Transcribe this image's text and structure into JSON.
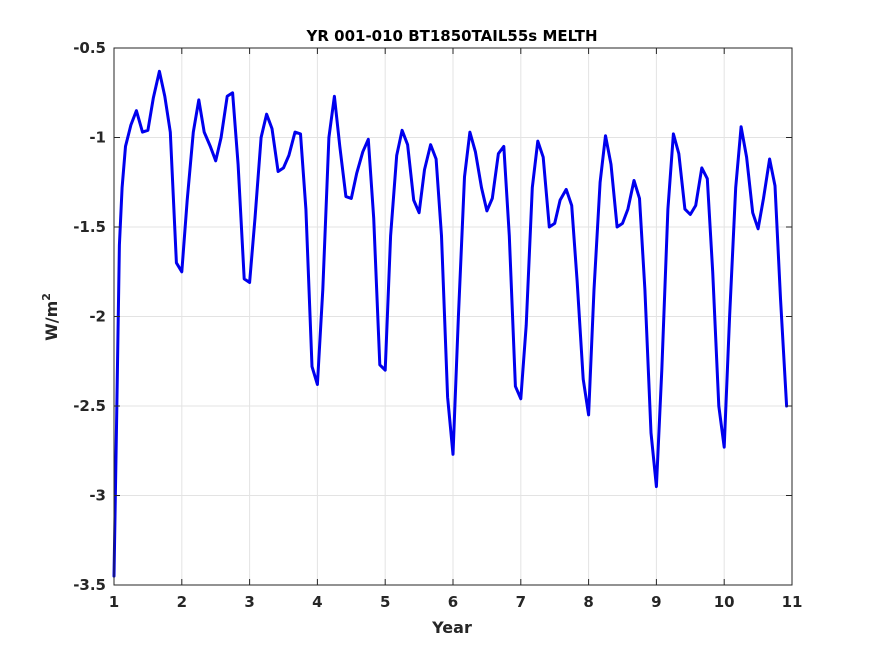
{
  "chart_data": {
    "type": "line",
    "title": "YR 001-010 BT1850TAIL55s MELTH",
    "xlabel": "Year",
    "ylabel": "W/m",
    "ylabel_sup": "2",
    "xlim": [
      1,
      11
    ],
    "ylim": [
      -3.5,
      -0.5
    ],
    "xticks": [
      1,
      2,
      3,
      4,
      5,
      6,
      7,
      8,
      9,
      10,
      11
    ],
    "yticks": [
      -3.5,
      -3,
      -2.5,
      -2,
      -1.5,
      -1,
      -0.5
    ],
    "xtick_labels": [
      "1",
      "2",
      "3",
      "4",
      "5",
      "6",
      "7",
      "8",
      "9",
      "10",
      "11"
    ],
    "ytick_labels": [
      "-3.5",
      "-3",
      "-2.5",
      "-2",
      "-1.5",
      "-1",
      "-0.5"
    ],
    "grid": true,
    "series": [
      {
        "color": "#0000ee",
        "points": [
          [
            1.0,
            -3.45
          ],
          [
            1.04,
            -2.55
          ],
          [
            1.08,
            -1.6
          ],
          [
            1.12,
            -1.28
          ],
          [
            1.17,
            -1.05
          ],
          [
            1.25,
            -0.93
          ],
          [
            1.33,
            -0.85
          ],
          [
            1.42,
            -0.97
          ],
          [
            1.5,
            -0.96
          ],
          [
            1.58,
            -0.78
          ],
          [
            1.67,
            -0.63
          ],
          [
            1.75,
            -0.77
          ],
          [
            1.83,
            -0.97
          ],
          [
            1.92,
            -1.7
          ],
          [
            2.0,
            -1.75
          ],
          [
            2.08,
            -1.35
          ],
          [
            2.17,
            -0.97
          ],
          [
            2.25,
            -0.79
          ],
          [
            2.33,
            -0.97
          ],
          [
            2.42,
            -1.05
          ],
          [
            2.5,
            -1.13
          ],
          [
            2.58,
            -1.0
          ],
          [
            2.67,
            -0.77
          ],
          [
            2.75,
            -0.75
          ],
          [
            2.83,
            -1.15
          ],
          [
            2.92,
            -1.79
          ],
          [
            3.0,
            -1.81
          ],
          [
            3.08,
            -1.45
          ],
          [
            3.17,
            -1.0
          ],
          [
            3.25,
            -0.87
          ],
          [
            3.33,
            -0.95
          ],
          [
            3.42,
            -1.19
          ],
          [
            3.5,
            -1.17
          ],
          [
            3.58,
            -1.1
          ],
          [
            3.67,
            -0.97
          ],
          [
            3.75,
            -0.98
          ],
          [
            3.83,
            -1.4
          ],
          [
            3.92,
            -2.28
          ],
          [
            4.0,
            -2.38
          ],
          [
            4.08,
            -1.85
          ],
          [
            4.17,
            -1.0
          ],
          [
            4.25,
            -0.77
          ],
          [
            4.33,
            -1.05
          ],
          [
            4.42,
            -1.33
          ],
          [
            4.5,
            -1.34
          ],
          [
            4.58,
            -1.2
          ],
          [
            4.67,
            -1.08
          ],
          [
            4.75,
            -1.01
          ],
          [
            4.83,
            -1.45
          ],
          [
            4.92,
            -2.27
          ],
          [
            5.0,
            -2.3
          ],
          [
            5.08,
            -1.55
          ],
          [
            5.17,
            -1.1
          ],
          [
            5.25,
            -0.96
          ],
          [
            5.33,
            -1.04
          ],
          [
            5.42,
            -1.35
          ],
          [
            5.5,
            -1.42
          ],
          [
            5.58,
            -1.18
          ],
          [
            5.67,
            -1.04
          ],
          [
            5.75,
            -1.12
          ],
          [
            5.83,
            -1.55
          ],
          [
            5.92,
            -2.45
          ],
          [
            6.0,
            -2.77
          ],
          [
            6.08,
            -2.0
          ],
          [
            6.17,
            -1.22
          ],
          [
            6.25,
            -0.97
          ],
          [
            6.33,
            -1.08
          ],
          [
            6.42,
            -1.28
          ],
          [
            6.5,
            -1.41
          ],
          [
            6.58,
            -1.34
          ],
          [
            6.67,
            -1.09
          ],
          [
            6.75,
            -1.05
          ],
          [
            6.83,
            -1.55
          ],
          [
            6.92,
            -2.39
          ],
          [
            7.0,
            -2.46
          ],
          [
            7.08,
            -2.05
          ],
          [
            7.17,
            -1.28
          ],
          [
            7.25,
            -1.02
          ],
          [
            7.33,
            -1.11
          ],
          [
            7.42,
            -1.5
          ],
          [
            7.5,
            -1.48
          ],
          [
            7.58,
            -1.35
          ],
          [
            7.67,
            -1.29
          ],
          [
            7.75,
            -1.38
          ],
          [
            7.83,
            -1.8
          ],
          [
            7.92,
            -2.35
          ],
          [
            8.0,
            -2.55
          ],
          [
            8.08,
            -1.85
          ],
          [
            8.17,
            -1.25
          ],
          [
            8.25,
            -0.99
          ],
          [
            8.33,
            -1.15
          ],
          [
            8.42,
            -1.5
          ],
          [
            8.5,
            -1.48
          ],
          [
            8.58,
            -1.4
          ],
          [
            8.67,
            -1.24
          ],
          [
            8.75,
            -1.34
          ],
          [
            8.83,
            -1.85
          ],
          [
            8.92,
            -2.65
          ],
          [
            9.0,
            -2.95
          ],
          [
            9.08,
            -2.3
          ],
          [
            9.17,
            -1.4
          ],
          [
            9.25,
            -0.98
          ],
          [
            9.33,
            -1.09
          ],
          [
            9.42,
            -1.4
          ],
          [
            9.5,
            -1.43
          ],
          [
            9.58,
            -1.38
          ],
          [
            9.67,
            -1.17
          ],
          [
            9.75,
            -1.23
          ],
          [
            9.83,
            -1.75
          ],
          [
            9.92,
            -2.5
          ],
          [
            10.0,
            -2.73
          ],
          [
            10.08,
            -2.0
          ],
          [
            10.17,
            -1.28
          ],
          [
            10.25,
            -0.94
          ],
          [
            10.33,
            -1.11
          ],
          [
            10.42,
            -1.42
          ],
          [
            10.5,
            -1.51
          ],
          [
            10.58,
            -1.34
          ],
          [
            10.67,
            -1.12
          ],
          [
            10.75,
            -1.27
          ],
          [
            10.83,
            -1.9
          ],
          [
            10.92,
            -2.5
          ]
        ]
      }
    ]
  }
}
